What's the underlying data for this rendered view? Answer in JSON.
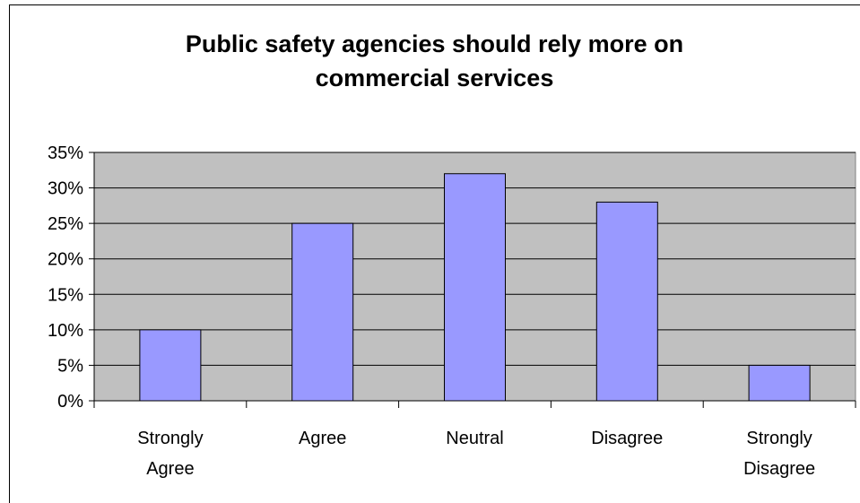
{
  "chart_data": {
    "type": "bar",
    "title_lines": [
      "Public safety agencies should rely more on",
      "commercial services"
    ],
    "categories": [
      [
        "Strongly",
        "Agree"
      ],
      [
        "Agree"
      ],
      [
        "Neutral"
      ],
      [
        "Disagree"
      ],
      [
        "Strongly",
        "Disagree"
      ]
    ],
    "values": [
      10,
      25,
      32,
      28,
      5
    ],
    "ylim": [
      0,
      35
    ],
    "yticks": [
      "0%",
      "5%",
      "10%",
      "15%",
      "20%",
      "25%",
      "30%",
      "35%"
    ],
    "grid": true,
    "colors": {
      "bar": "#9999ff",
      "plot_bg": "#c0c0c0"
    }
  }
}
